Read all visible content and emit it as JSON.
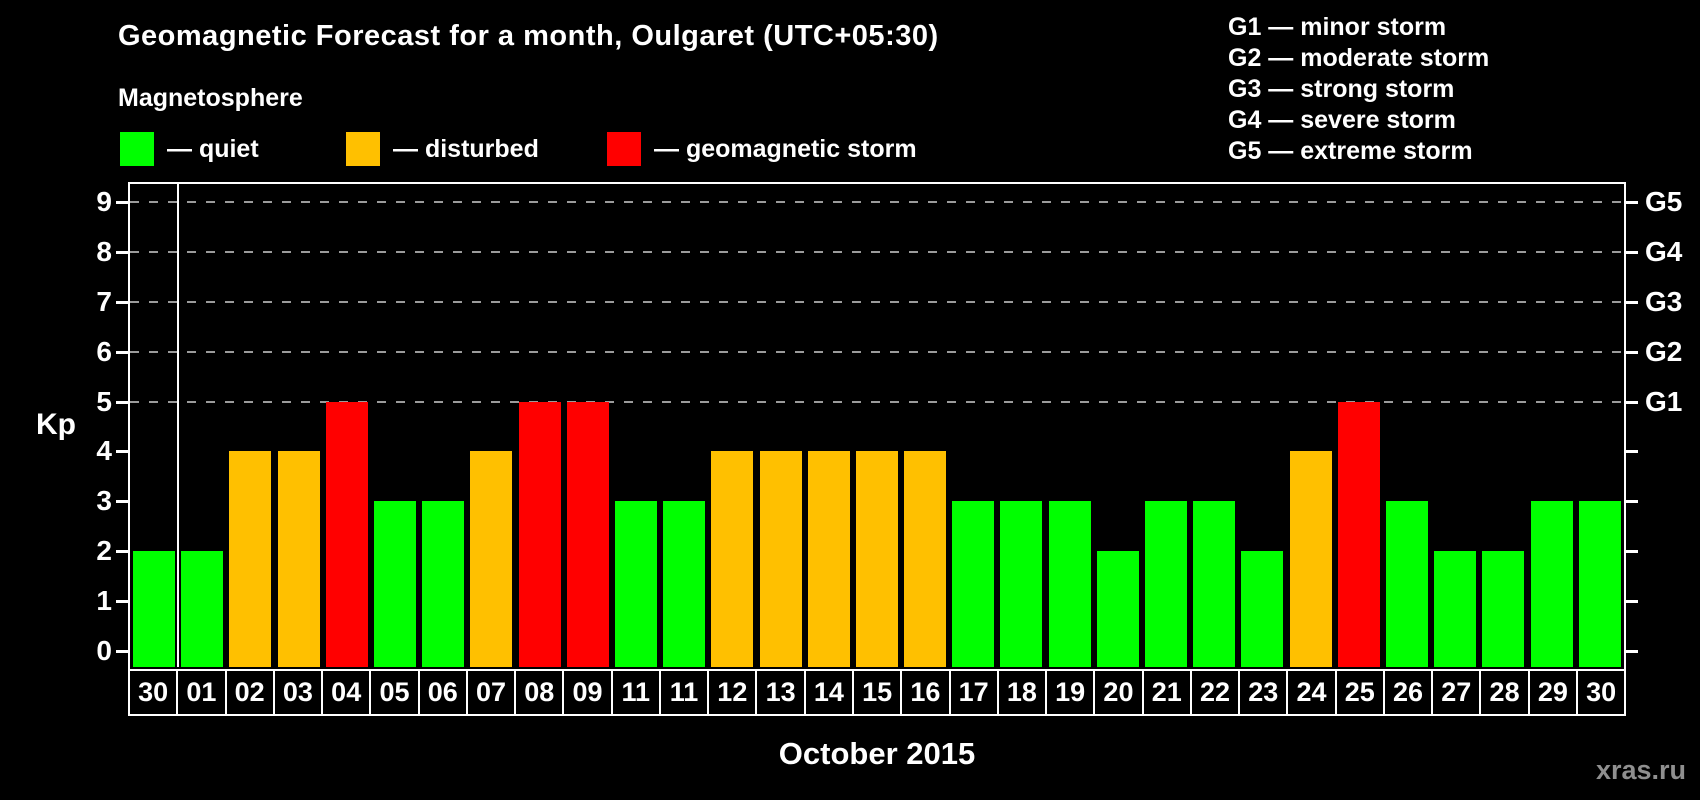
{
  "header": {
    "title": "Geomagnetic Forecast for a month, Oulgaret (UTC+05:30)",
    "subtitle": "Magnetosphere"
  },
  "legend": {
    "items": [
      {
        "id": "quiet",
        "label": "— quiet",
        "color": "#00ff00"
      },
      {
        "id": "disturbed",
        "label": "— disturbed",
        "color": "#ffc000"
      },
      {
        "id": "storm",
        "label": "— geomagnetic storm",
        "color": "#ff0000"
      }
    ]
  },
  "storm_scale": [
    "G1 — minor storm",
    "G2 — moderate storm",
    "G3 — strong storm",
    "G4 — severe storm",
    "G5 — extreme storm"
  ],
  "axis": {
    "y_label": "Kp",
    "y_ticks": [
      0,
      1,
      2,
      3,
      4,
      5,
      6,
      7,
      8,
      9
    ],
    "g_levels": [
      {
        "kp": 5,
        "label": "G1"
      },
      {
        "kp": 6,
        "label": "G2"
      },
      {
        "kp": 7,
        "label": "G3"
      },
      {
        "kp": 8,
        "label": "G4"
      },
      {
        "kp": 9,
        "label": "G5"
      }
    ]
  },
  "chart_data": {
    "type": "bar",
    "title": "Geomagnetic Forecast for a month, Oulgaret (UTC+05:30)",
    "xlabel": "October 2015",
    "ylabel": "Kp",
    "ylim": [
      0,
      9
    ],
    "grid": "dashed horizontal lines at Kp 5-9 (G1-G5)",
    "legend_position": "top-left",
    "categories": [
      "30",
      "01",
      "02",
      "03",
      "04",
      "05",
      "06",
      "07",
      "08",
      "09",
      "11",
      "11",
      "12",
      "13",
      "14",
      "15",
      "16",
      "17",
      "18",
      "19",
      "20",
      "21",
      "22",
      "23",
      "24",
      "25",
      "26",
      "27",
      "28",
      "29",
      "30"
    ],
    "values": [
      2,
      2,
      4,
      4,
      5,
      3,
      3,
      4,
      5,
      5,
      3,
      3,
      4,
      4,
      4,
      4,
      4,
      3,
      3,
      3,
      2,
      3,
      3,
      2,
      4,
      5,
      3,
      2,
      2,
      3,
      3
    ],
    "statuses": [
      "quiet",
      "quiet",
      "disturbed",
      "disturbed",
      "storm",
      "quiet",
      "quiet",
      "disturbed",
      "storm",
      "storm",
      "quiet",
      "quiet",
      "disturbed",
      "disturbed",
      "disturbed",
      "disturbed",
      "disturbed",
      "quiet",
      "quiet",
      "quiet",
      "quiet",
      "quiet",
      "quiet",
      "quiet",
      "disturbed",
      "storm",
      "quiet",
      "quiet",
      "quiet",
      "quiet",
      "quiet"
    ],
    "separator_after_index": 0
  },
  "x_axis_title": "October 2015",
  "watermark": "xras.ru"
}
